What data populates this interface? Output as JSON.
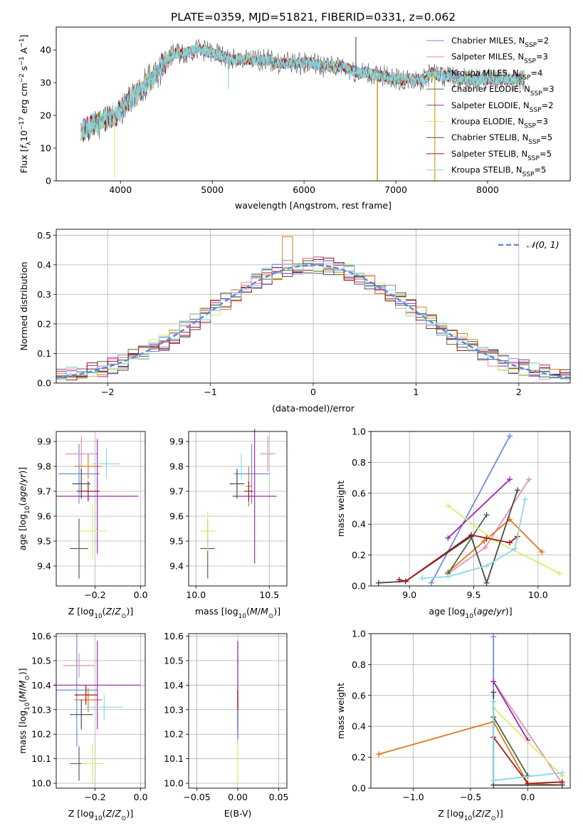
{
  "figure": {
    "title": "PLATE=0359, MJD=51821, FIBERID=0331, z=0.062"
  },
  "model_colors": [
    "#6a8fde",
    "#e58fb4",
    "#80d9d9",
    "#4a6a4a",
    "#9a2ab0",
    "#d8ec6c",
    "#4a4a4a",
    "#a01818",
    "#8ad8e8"
  ],
  "model_names": [
    "Chabrier MILES, N_SSP=2",
    "Salpeter MILES, N_SSP=3",
    "Kroupa MILES, N_SSP=4",
    "Chabrier ELODIE, N_SSP=3",
    "Salpeter ELODIE, N_SSP=2",
    "Kroupa ELODIE, N_SSP=3",
    "Chabrier STELIB, N_SSP=5",
    "Salpeter STELIB, N_SSP=5",
    "Kroupa STELIB, N_SSP=5"
  ],
  "chart_data": [
    {
      "id": "spectrum",
      "type": "line",
      "title": "PLATE=0359, MJD=51821, FIBERID=0331, z=0.062",
      "xlabel": "wavelength [Angstrom, rest frame]",
      "ylabel": "Flux [f_λ 10^-17 erg cm^-2 s^-1 A^-1]",
      "xlim": [
        3300,
        8900
      ],
      "ylim": [
        0,
        47
      ],
      "xticks": [
        4000,
        5000,
        6000,
        7000,
        8000
      ],
      "yticks": [
        0,
        10,
        20,
        30,
        40
      ],
      "grid": false,
      "legend_placement": "right",
      "legend": [
        {
          "base": "Chabrier MILES, N",
          "sub": "SSP",
          "tail": "=2",
          "color": "#6a8fde"
        },
        {
          "base": "Salpeter MILES, N",
          "sub": "SSP",
          "tail": "=3",
          "color": "#e58fb4"
        },
        {
          "base": "Kroupa MILES, N",
          "sub": "SSP",
          "tail": "=4",
          "color": "#80d9d9"
        },
        {
          "base": "Chabrier ELODIE, N",
          "sub": "SSP",
          "tail": "=3",
          "color": "#4a6a4a"
        },
        {
          "base": "Salpeter ELODIE, N",
          "sub": "SSP",
          "tail": "=2",
          "color": "#9a2ab0"
        },
        {
          "base": "Kroupa ELODIE, N",
          "sub": "SSP",
          "tail": "=3",
          "color": "#d8ec6c"
        },
        {
          "base": "Chabrier STELIB, N",
          "sub": "SSP",
          "tail": "=5",
          "color": "#4a4a4a"
        },
        {
          "base": "Salpeter STELIB, N",
          "sub": "SSP",
          "tail": "=5",
          "color": "#a01818"
        },
        {
          "base": "Kroupa STELIB, N",
          "sub": "SSP",
          "tail": "=5",
          "color": "#8ad8e8"
        }
      ],
      "continuum": [
        [
          3570,
          15
        ],
        [
          3700,
          17
        ],
        [
          3800,
          19
        ],
        [
          3950,
          20
        ],
        [
          4000,
          22
        ],
        [
          4100,
          25
        ],
        [
          4200,
          27
        ],
        [
          4300,
          30
        ],
        [
          4400,
          33
        ],
        [
          4500,
          37
        ],
        [
          4600,
          39
        ],
        [
          4700,
          39
        ],
        [
          4800,
          40
        ],
        [
          4900,
          40
        ],
        [
          5000,
          39
        ],
        [
          5100,
          38
        ],
        [
          5200,
          37
        ],
        [
          5300,
          37
        ],
        [
          5400,
          37
        ],
        [
          5500,
          37
        ],
        [
          5600,
          37
        ],
        [
          5700,
          36
        ],
        [
          5800,
          36
        ],
        [
          5900,
          36
        ],
        [
          6000,
          36
        ],
        [
          6100,
          36
        ],
        [
          6200,
          35
        ],
        [
          6300,
          35
        ],
        [
          6400,
          35
        ],
        [
          6500,
          34
        ],
        [
          6600,
          33
        ],
        [
          6700,
          33
        ],
        [
          6800,
          32
        ],
        [
          6900,
          32
        ],
        [
          7000,
          31
        ],
        [
          7100,
          31
        ],
        [
          7200,
          31
        ],
        [
          7300,
          31
        ],
        [
          7400,
          33
        ],
        [
          7500,
          32
        ],
        [
          7600,
          32
        ],
        [
          7700,
          31
        ],
        [
          7800,
          31
        ],
        [
          7900,
          31
        ],
        [
          8000,
          31
        ],
        [
          8100,
          31
        ],
        [
          8200,
          31
        ],
        [
          8300,
          31
        ],
        [
          8400,
          31
        ]
      ],
      "features": [
        {
          "x": 3934,
          "y": 1,
          "color": "#d8ec6c"
        },
        {
          "x": 5175,
          "y": 28,
          "color": "#80d9d9"
        },
        {
          "x": 6565,
          "y": 44,
          "color": "#4a4a4a"
        },
        {
          "x": 6795,
          "y": 0,
          "color": "#d8ec6c"
        },
        {
          "x": 6800,
          "y": 0,
          "color": "#e07820"
        },
        {
          "x": 7425,
          "y": 0,
          "color": "#e07820"
        },
        {
          "x": 7430,
          "y": 0,
          "color": "#d8ec6c"
        }
      ]
    },
    {
      "id": "residuals",
      "type": "histogram",
      "xlabel": "(data-model)/error",
      "ylabel": "Normed distribution",
      "xlim": [
        -2.5,
        2.5
      ],
      "ylim": [
        0,
        0.52
      ],
      "xticks": [
        -2,
        -1,
        0,
        1,
        2
      ],
      "yticks": [
        0.0,
        0.1,
        0.2,
        0.3,
        0.4,
        0.5
      ],
      "grid": true,
      "legend": [
        {
          "label": "𝒩(0, 1)",
          "color": "#5a8ad8",
          "style": "dashed"
        }
      ],
      "bin_edges_start": -2.5,
      "bin_width": 0.1,
      "series_colors": [
        "#6a8fde",
        "#e58fb4",
        "#e07820",
        "#4a6a4a",
        "#9a2ab0",
        "#d8ec6c",
        "#4a4a4a",
        "#a01818",
        "#8ad8e8"
      ]
    },
    {
      "id": "age-vs-Z",
      "type": "errorbar",
      "xlabel": "Z [log10(Z/Z⊙)]",
      "ylabel": "age [log10(age/yr)]",
      "xlim": [
        -0.37,
        0.02
      ],
      "ylim": [
        9.32,
        9.94
      ],
      "xticks": [
        -0.2,
        0.0
      ],
      "xticklabels": [
        "−0.2",
        "0.0"
      ],
      "yticks": [
        9.4,
        9.5,
        9.6,
        9.7,
        9.8,
        9.9
      ],
      "grid": true,
      "points": [
        {
          "x": -0.27,
          "y": 9.77,
          "xerr": 0.09,
          "yerr": 0.12,
          "color": "#6a8fde"
        },
        {
          "x": -0.26,
          "y": 9.85,
          "xerr": 0.07,
          "yerr": 0.07,
          "color": "#e58fb4"
        },
        {
          "x": -0.23,
          "y": 9.8,
          "xerr": 0.06,
          "yerr": 0.05,
          "color": "#e07820"
        },
        {
          "x": -0.27,
          "y": 9.47,
          "xerr": 0.04,
          "yerr": 0.12,
          "color": "#4a6a4a"
        },
        {
          "x": -0.19,
          "y": 9.68,
          "xerr": 0.18,
          "yerr": 0.23,
          "color": "#9a2ab0"
        },
        {
          "x": -0.21,
          "y": 9.54,
          "xerr": 0.06,
          "yerr": 0.11,
          "color": "#d8ec6c"
        },
        {
          "x": -0.26,
          "y": 9.73,
          "xerr": 0.04,
          "yerr": 0.06,
          "color": "#4a4a4a"
        },
        {
          "x": -0.23,
          "y": 9.7,
          "xerr": 0.05,
          "yerr": 0.04,
          "color": "#a01818"
        },
        {
          "x": -0.15,
          "y": 9.81,
          "xerr": 0.06,
          "yerr": 0.06,
          "color": "#8ad8e8"
        }
      ]
    },
    {
      "id": "age-vs-mass",
      "type": "errorbar",
      "xlabel": "mass [log10(M/M⊙)]",
      "ylabel": "",
      "xlim": [
        9.95,
        10.62
      ],
      "ylim": [
        9.32,
        9.94
      ],
      "xticks": [
        10.0,
        10.5
      ],
      "yticks": [
        9.4,
        9.5,
        9.6,
        9.7,
        9.8,
        9.9
      ],
      "grid": true,
      "points": [
        {
          "x": 10.38,
          "y": 9.77,
          "xerr": 0.12,
          "yerr": 0.12,
          "color": "#6a8fde"
        },
        {
          "x": 10.49,
          "y": 9.85,
          "xerr": 0.05,
          "yerr": 0.07,
          "color": "#e58fb4"
        },
        {
          "x": 10.36,
          "y": 9.72,
          "xerr": 0.02,
          "yerr": 0.08,
          "color": "#e07820"
        },
        {
          "x": 10.08,
          "y": 9.47,
          "xerr": 0.05,
          "yerr": 0.12,
          "color": "#4a6a4a"
        },
        {
          "x": 10.4,
          "y": 9.68,
          "xerr": 0.15,
          "yerr": 0.27,
          "color": "#9a2ab0"
        },
        {
          "x": 10.08,
          "y": 9.54,
          "xerr": 0.05,
          "yerr": 0.08,
          "color": "#d8ec6c"
        },
        {
          "x": 10.28,
          "y": 9.73,
          "xerr": 0.05,
          "yerr": 0.06,
          "color": "#4a4a4a"
        },
        {
          "x": 10.36,
          "y": 9.7,
          "xerr": 0.03,
          "yerr": 0.04,
          "color": "#a01818"
        },
        {
          "x": 10.31,
          "y": 9.8,
          "xerr": 0.03,
          "yerr": 0.05,
          "color": "#8ad8e8"
        }
      ]
    },
    {
      "id": "weight-vs-age",
      "type": "line",
      "xlabel": "age [log10(age/yr)]",
      "ylabel": "mass weight",
      "xlim": [
        8.7,
        10.25
      ],
      "ylim": [
        0,
        1
      ],
      "xticks": [
        9.0,
        9.5,
        10.0
      ],
      "yticks": [
        0.0,
        0.2,
        0.4,
        0.6,
        0.8,
        1.0
      ],
      "grid": true,
      "series": [
        {
          "color": "#6a8fde",
          "points": [
            [
              9.17,
              0.02
            ],
            [
              9.78,
              0.97
            ]
          ]
        },
        {
          "color": "#e58fb4",
          "points": [
            [
              9.3,
              0.08
            ],
            [
              9.59,
              0.25
            ],
            [
              9.93,
              0.69
            ]
          ]
        },
        {
          "color": "#e07820",
          "points": [
            [
              9.3,
              0.09
            ],
            [
              9.58,
              0.29
            ],
            [
              9.78,
              0.43
            ],
            [
              10.03,
              0.22
            ]
          ]
        },
        {
          "color": "#4a6a4a",
          "points": [
            [
              9.3,
              0.08
            ],
            [
              9.6,
              0.46
            ]
          ]
        },
        {
          "color": "#9a2ab0",
          "points": [
            [
              9.3,
              0.31
            ],
            [
              9.78,
              0.69
            ]
          ]
        },
        {
          "color": "#d8ec6c",
          "points": [
            [
              9.3,
              0.52
            ],
            [
              9.65,
              0.3
            ],
            [
              10.17,
              0.08
            ]
          ]
        },
        {
          "color": "#4a4a4a",
          "points": [
            [
              8.76,
              0.02
            ],
            [
              8.97,
              0.03
            ],
            [
              9.48,
              0.32
            ],
            [
              9.6,
              0.02
            ],
            [
              9.84,
              0.62
            ]
          ]
        },
        {
          "color": "#a01818",
          "points": [
            [
              8.92,
              0.04
            ],
            [
              8.97,
              0.03
            ],
            [
              9.48,
              0.33
            ],
            [
              9.6,
              0.31
            ],
            [
              9.78,
              0.28
            ],
            [
              9.84,
              0.32
            ]
          ]
        },
        {
          "color": "#8ad8e8",
          "points": [
            [
              9.1,
              0.05
            ],
            [
              9.3,
              0.06
            ],
            [
              9.6,
              0.13
            ],
            [
              9.82,
              0.24
            ],
            [
              9.9,
              0.56
            ]
          ]
        }
      ]
    },
    {
      "id": "mass-vs-Z",
      "type": "errorbar",
      "xlabel": "Z [log10(Z/Z⊙)]",
      "ylabel": "mass [log10(M/M⊙)]",
      "xlim": [
        -0.37,
        0.02
      ],
      "ylim": [
        9.98,
        10.61
      ],
      "xticks": [
        -0.2,
        0.0
      ],
      "xticklabels": [
        "−0.2",
        "0.0"
      ],
      "yticks": [
        10.0,
        10.1,
        10.2,
        10.3,
        10.4,
        10.5,
        10.6
      ],
      "grid": true,
      "points": [
        {
          "x": -0.28,
          "y": 10.38,
          "xerr": 0.09,
          "yerr": 0.23,
          "color": "#6a8fde"
        },
        {
          "x": -0.27,
          "y": 10.48,
          "xerr": 0.07,
          "yerr": 0.05,
          "color": "#e58fb4"
        },
        {
          "x": -0.23,
          "y": 10.34,
          "xerr": 0.06,
          "yerr": 0.05,
          "color": "#e07820"
        },
        {
          "x": -0.27,
          "y": 10.08,
          "xerr": 0.04,
          "yerr": 0.07,
          "color": "#4a6a4a"
        },
        {
          "x": -0.19,
          "y": 10.4,
          "xerr": 0.19,
          "yerr": 0.18,
          "color": "#9a2ab0"
        },
        {
          "x": -0.21,
          "y": 10.08,
          "xerr": 0.05,
          "yerr": 0.08,
          "color": "#d8ec6c"
        },
        {
          "x": -0.26,
          "y": 10.28,
          "xerr": 0.05,
          "yerr": 0.06,
          "color": "#4a4a4a"
        },
        {
          "x": -0.24,
          "y": 10.36,
          "xerr": 0.05,
          "yerr": 0.04,
          "color": "#a01818"
        },
        {
          "x": -0.16,
          "y": 10.31,
          "xerr": 0.08,
          "yerr": 0.05,
          "color": "#8ad8e8"
        }
      ]
    },
    {
      "id": "mass-vs-EBV",
      "type": "errorbar",
      "xlabel": "E(B-V)",
      "ylabel": "",
      "xlim": [
        -0.06,
        0.06
      ],
      "ylim": [
        9.98,
        10.61
      ],
      "xticks": [
        -0.05,
        0.0,
        0.05
      ],
      "xticklabels": [
        "−0.05",
        "0.00",
        "0.05"
      ],
      "yticks": [
        10.0,
        10.1,
        10.2,
        10.3,
        10.4,
        10.5,
        10.6
      ],
      "grid": true,
      "points": [
        {
          "x": 0.0,
          "y": 10.38,
          "xerr": 0,
          "yerr": 0.2,
          "color": "#9a2ab0"
        },
        {
          "x": 0.0,
          "y": 10.3,
          "xerr": 0,
          "yerr": 0.08,
          "color": "#a01818"
        },
        {
          "x": 0.0,
          "y": 10.24,
          "xerr": 0,
          "yerr": 0.06,
          "color": "#6a8fde"
        },
        {
          "x": 0.0,
          "y": 10.08,
          "xerr": 0,
          "yerr": 0.08,
          "color": "#d8ec6c"
        }
      ]
    },
    {
      "id": "weight-vs-Z",
      "type": "line",
      "xlabel": "Z [log10(Z/Z⊙)]",
      "ylabel": "mass weight",
      "xlim": [
        -1.37,
        0.37
      ],
      "ylim": [
        0,
        1
      ],
      "xticks": [
        -1.0,
        -0.5,
        0.0
      ],
      "xticklabels": [
        "−1.0",
        "−0.5",
        "0.0"
      ],
      "yticks": [
        0.0,
        0.2,
        0.4,
        0.6,
        0.8,
        1.0
      ],
      "grid": true,
      "series": [
        {
          "color": "#6a8fde",
          "points": [
            [
              -0.3,
              0.98
            ],
            [
              -0.3,
              0.02
            ]
          ]
        },
        {
          "color": "#e58fb4",
          "points": [
            [
              -0.3,
              0.69
            ],
            [
              0.3,
              0.03
            ]
          ]
        },
        {
          "color": "#e07820",
          "points": [
            [
              -1.3,
              0.22
            ],
            [
              -0.3,
              0.43
            ],
            [
              0.0,
              0.03
            ],
            [
              0.3,
              0.02
            ]
          ]
        },
        {
          "color": "#4a6a4a",
          "points": [
            [
              -0.3,
              0.46
            ],
            [
              0.0,
              0.08
            ]
          ]
        },
        {
          "color": "#9a2ab0",
          "points": [
            [
              -0.3,
              0.69
            ],
            [
              0.0,
              0.31
            ]
          ]
        },
        {
          "color": "#d8ec6c",
          "points": [
            [
              -0.3,
              0.52
            ],
            [
              0.3,
              0.08
            ]
          ]
        },
        {
          "color": "#4a4a4a",
          "points": [
            [
              -0.3,
              0.62
            ],
            [
              -0.3,
              0.02
            ],
            [
              0.3,
              0.02
            ]
          ]
        },
        {
          "color": "#a01818",
          "points": [
            [
              -0.3,
              0.33
            ],
            [
              0.0,
              0.03
            ],
            [
              0.3,
              0.04
            ]
          ]
        },
        {
          "color": "#8ad8e8",
          "points": [
            [
              -0.3,
              0.56
            ],
            [
              -0.3,
              0.05
            ],
            [
              0.3,
              0.1
            ]
          ]
        }
      ]
    }
  ]
}
